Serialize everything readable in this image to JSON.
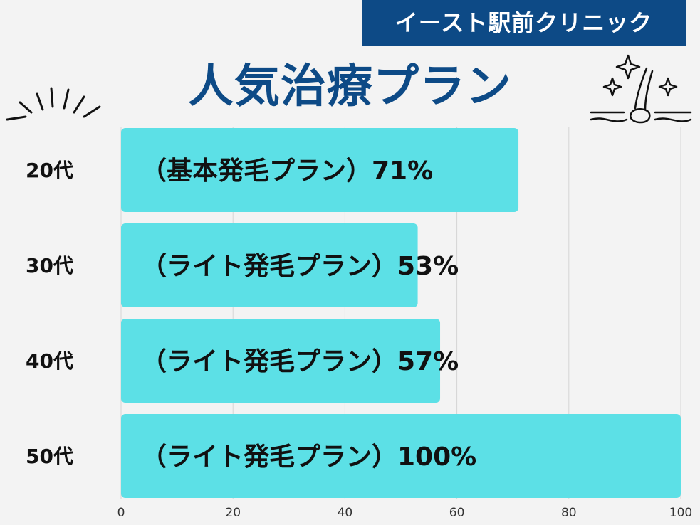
{
  "clinic_name": "イースト駅前クリニック",
  "colors": {
    "banner": "#0d4a86",
    "title": "#0d4a86",
    "bar": "#5ce0e6",
    "background": "#f3f3f3",
    "grid": "#d4d4d4"
  },
  "icons": [
    "burst-lines-icon",
    "hair-follicle-sparkle-icon"
  ],
  "chart_data": {
    "type": "bar",
    "orientation": "horizontal",
    "title": "人気治療プラン",
    "categories": [
      "20代",
      "30代",
      "40代",
      "50代"
    ],
    "values": [
      71,
      53,
      57,
      100
    ],
    "data_labels": [
      "（基本発毛プラン）71%",
      "（ライト発毛プラン）53%",
      "（ライト発毛プラン）57%",
      "（ライト発毛プラン）100%"
    ],
    "xlim": [
      0,
      100
    ],
    "xticks": [
      0,
      20,
      40,
      60,
      80,
      100
    ],
    "xlabel": "",
    "ylabel": "",
    "grid": true,
    "legend": "none"
  }
}
